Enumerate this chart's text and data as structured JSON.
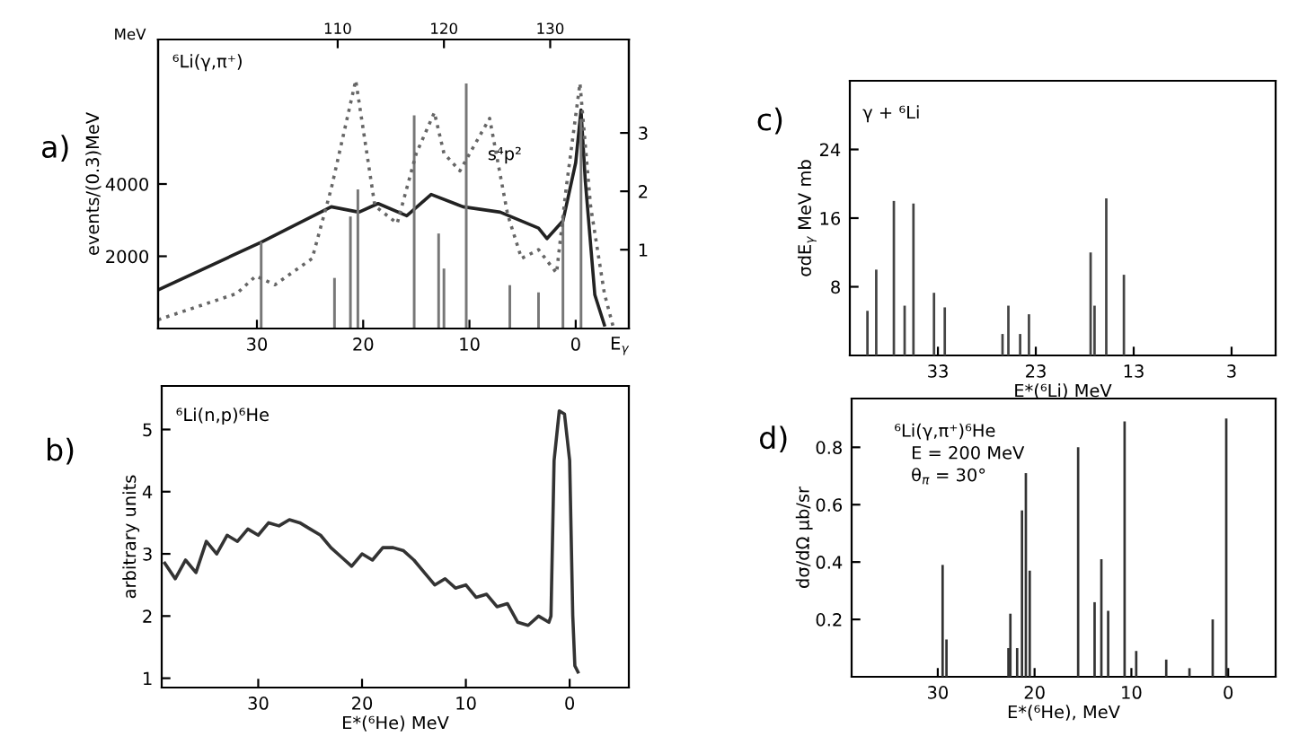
{
  "chart_data": [
    {
      "type": "line",
      "ylabel": "events/(0.3)MeV",
      "x2label": "MeV",
      "xlim": [
        39.3,
        -5
      ],
      "xticks": [
        30,
        20,
        10,
        0
      ],
      "x2lim": [
        93.1,
        137.4
      ],
      "x2ticks": [
        110,
        120,
        130
      ],
      "ylim": [
        0,
        8000
      ],
      "yticks": [
        2000,
        4000
      ],
      "y2lim": [
        -0.35,
        4.6
      ],
      "y2ticks": [
        1,
        2,
        3
      ],
      "grid": false,
      "legend": false,
      "annotations": [
        "a)",
        "⁶Li(γ,π⁺)",
        "s⁴p²",
        "E$_{γ}$"
      ],
      "series": [
        {
          "type": "bar",
          "color": "#777777",
          "x": [
            29.6,
            22.7,
            21.2,
            20.5,
            15.2,
            12.9,
            12.4,
            10.3,
            6.2,
            3.5,
            1.2,
            -0.5
          ],
          "values": [
            2400,
            1400,
            3100,
            3850,
            5900,
            2630,
            1660,
            6780,
            1200,
            1000,
            3100,
            5800
          ]
        },
        {
          "color": "#222222",
          "line_style": "solid",
          "x": [
            39.3,
            29.6,
            23,
            20.4,
            18.6,
            15.9,
            13.6,
            10.6,
            7.1,
            3.5,
            2.7,
            1.2,
            0,
            -0.5,
            -0.9,
            -1.8,
            -2.7
          ],
          "values": [
            1070,
            2390,
            3370,
            3220,
            3460,
            3120,
            3710,
            3370,
            3220,
            2780,
            2490,
            2980,
            4590,
            6050,
            4100,
            930,
            100
          ]
        },
        {
          "axis": "y2",
          "color": "#666666",
          "line_style": "dotted",
          "x": [
            39.3,
            31.9,
            30.1,
            28.3,
            24.8,
            23,
            20.7,
            18.9,
            16.8,
            15,
            13.3,
            12.4,
            10.9,
            8.1,
            6.4,
            5.1,
            3.5,
            1.8,
            0.9,
            -0.4,
            -1.4,
            -2.7,
            -3.5
          ],
          "values": [
            -0.2,
            0.25,
            0.55,
            0.4,
            0.85,
            2.05,
            3.9,
            1.75,
            1.45,
            2.65,
            3.35,
            2.65,
            2.35,
            3.25,
            1.6,
            0.85,
            1.0,
            0.6,
            2.05,
            3.85,
            1.75,
            0.25,
            -0.3
          ]
        }
      ]
    },
    {
      "type": "line",
      "xlabel": "E*(⁶He) MeV",
      "ylabel": "arbitrary units",
      "xlim": [
        39.3,
        -5.7
      ],
      "xticks": [
        30,
        20,
        10,
        0
      ],
      "ylim": [
        0.85,
        5.7
      ],
      "yticks": [
        1,
        2,
        3,
        4,
        5
      ],
      "grid": false,
      "legend": false,
      "annotations": [
        "b)",
        "⁶Li(n,p)⁶He"
      ],
      "series": [
        {
          "color": "#333333",
          "line_style": "solid",
          "x": [
            39,
            38,
            37,
            36,
            35,
            34,
            33,
            32,
            31,
            30,
            29,
            28,
            27,
            26,
            25,
            24,
            23,
            22,
            21,
            20,
            19,
            18,
            17,
            16,
            15,
            14,
            13,
            12,
            11,
            10,
            9,
            8,
            7,
            6,
            5,
            4,
            3,
            2,
            1.8,
            1.5,
            1,
            0.5,
            0,
            -0.3,
            -0.5,
            -0.8
          ],
          "values": [
            2.85,
            2.6,
            2.9,
            2.7,
            3.2,
            3.0,
            3.3,
            3.2,
            3.4,
            3.3,
            3.5,
            3.45,
            3.55,
            3.5,
            3.4,
            3.3,
            3.1,
            2.95,
            2.8,
            3.0,
            2.9,
            3.1,
            3.1,
            3.05,
            2.9,
            2.7,
            2.5,
            2.6,
            2.45,
            2.5,
            2.3,
            2.35,
            2.15,
            2.2,
            1.9,
            1.85,
            2.0,
            1.9,
            2.0,
            4.5,
            5.3,
            5.25,
            4.5,
            2.0,
            1.2,
            1.1
          ]
        }
      ]
    },
    {
      "type": "bar",
      "xlabel": "E*(⁶Li) MeV",
      "ylabel": "σdE$_{γ}$ MeV mb",
      "xlim": [
        42,
        -1.5
      ],
      "xticks": [
        33,
        23,
        13,
        3
      ],
      "ylim": [
        0,
        32
      ],
      "yticks": [
        8,
        16,
        24
      ],
      "grid": false,
      "legend": false,
      "annotations": [
        "c)",
        "γ + ⁶Li"
      ],
      "series": [
        {
          "color": "#444444",
          "x": [
            40.2,
            39.3,
            37.5,
            36.4,
            35.5,
            33.4,
            32.3,
            26.4,
            25.8,
            24.6,
            23.7,
            17.4,
            17.0,
            15.8,
            14.0
          ],
          "values": [
            5.2,
            10,
            18,
            5.8,
            17.7,
            7.3,
            5.6,
            2.5,
            5.8,
            2.5,
            4.8,
            12,
            5.8,
            18.3,
            9.4
          ]
        }
      ]
    },
    {
      "type": "bar",
      "xlabel": "E*(⁶He), MeV",
      "ylabel": "dσ/dΩ μb/sr",
      "xlim": [
        38.9,
        -4.9
      ],
      "xticks": [
        30,
        20,
        10,
        0
      ],
      "ylim": [
        0,
        0.97
      ],
      "yticks": [
        0.2,
        0.4,
        0.6,
        0.8
      ],
      "grid": false,
      "legend": false,
      "annotations": [
        "d)",
        "⁶Li(γ,π⁺)⁶He",
        "E = 200 MeV",
        "θ$_{π}$ = 30°"
      ],
      "series": [
        {
          "color": "#333333",
          "x": [
            29.5,
            29.1,
            22.7,
            22.5,
            21.8,
            21.3,
            20.9,
            20.5,
            15.5,
            13.8,
            13.1,
            12.4,
            10.7,
            9.5,
            6.4,
            4.0,
            1.6,
            0.2
          ],
          "values": [
            0.39,
            0.13,
            0.1,
            0.22,
            0.1,
            0.58,
            0.71,
            0.37,
            0.8,
            0.26,
            0.41,
            0.23,
            0.89,
            0.09,
            0.06,
            0.03,
            0.2,
            0.9
          ]
        }
      ]
    }
  ]
}
